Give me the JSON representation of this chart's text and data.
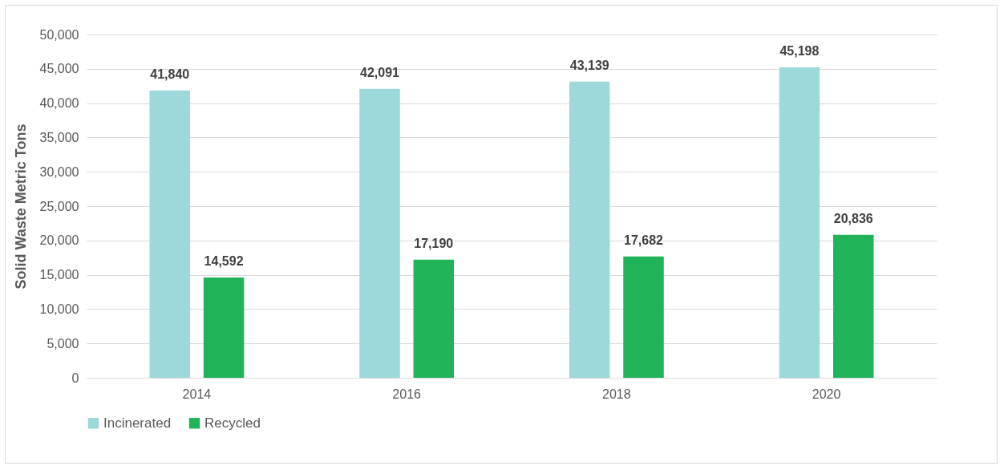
{
  "chart_data": {
    "type": "bar",
    "ylabel": "Solid Waste Metric Tons",
    "categories": [
      "2014",
      "2016",
      "2018",
      "2020"
    ],
    "series": [
      {
        "name": "Incinerated",
        "color": "#9dd8da",
        "values": [
          41840,
          42091,
          43139,
          45198
        ],
        "value_labels": [
          "41,840",
          "42,091",
          "43,139",
          "45,198"
        ]
      },
      {
        "name": "Recycled",
        "color": "#21b35a",
        "values": [
          14592,
          17190,
          17682,
          20836
        ],
        "value_labels": [
          "14,592",
          "17,190",
          "17,682",
          "20,836"
        ]
      }
    ],
    "ylim": [
      0,
      50000
    ],
    "yticks": [
      0,
      {
        "value": 5000,
        "label": "5,000"
      },
      {
        "value": 10000,
        "label": "10,000"
      },
      {
        "value": 15000,
        "label": "15,000"
      },
      {
        "value": 20000,
        "label": "20,000"
      },
      {
        "value": 25000,
        "label": "25,000"
      },
      {
        "value": 30000,
        "label": "30,000"
      },
      {
        "value": 35000,
        "label": "35,000"
      },
      {
        "value": 40000,
        "label": "40,000"
      },
      {
        "value": 45000,
        "label": "45,000"
      },
      {
        "value": 50000,
        "label": "50,000"
      }
    ],
    "grid": "y",
    "legend": "bottom"
  }
}
